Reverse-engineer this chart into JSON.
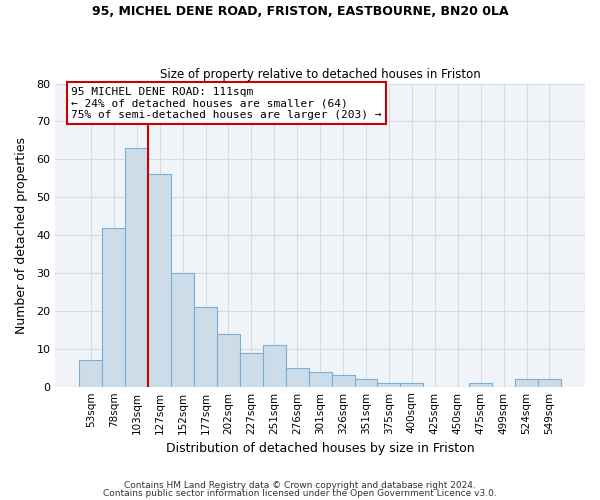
{
  "title": "95, MICHEL DENE ROAD, FRISTON, EASTBOURNE, BN20 0LA",
  "subtitle": "Size of property relative to detached houses in Friston",
  "xlabel": "Distribution of detached houses by size in Friston",
  "ylabel": "Number of detached properties",
  "bar_color": "#ccdce8",
  "bar_edge_color": "#7bafd4",
  "categories": [
    "53sqm",
    "78sqm",
    "103sqm",
    "127sqm",
    "152sqm",
    "177sqm",
    "202sqm",
    "227sqm",
    "251sqm",
    "276sqm",
    "301sqm",
    "326sqm",
    "351sqm",
    "375sqm",
    "400sqm",
    "425sqm",
    "450sqm",
    "475sqm",
    "499sqm",
    "524sqm",
    "549sqm"
  ],
  "values": [
    7,
    42,
    63,
    56,
    30,
    21,
    14,
    9,
    11,
    5,
    4,
    3,
    2,
    1,
    1,
    0,
    0,
    1,
    0,
    2,
    2
  ],
  "ylim": [
    0,
    80
  ],
  "yticks": [
    0,
    10,
    20,
    30,
    40,
    50,
    60,
    70,
    80
  ],
  "property_line_x": 2.5,
  "annotation_title": "95 MICHEL DENE ROAD: 111sqm",
  "annotation_line1": "← 24% of detached houses are smaller (64)",
  "annotation_line2": "75% of semi-detached houses are larger (203) →",
  "annotation_box_color": "#ffffff",
  "annotation_border_color": "#cc0000",
  "property_line_color": "#cc0000",
  "grid_color": "#d4dce8",
  "background_color": "#ffffff",
  "plot_bg_color": "#f0f4f8",
  "footer1": "Contains HM Land Registry data © Crown copyright and database right 2024.",
  "footer2": "Contains public sector information licensed under the Open Government Licence v3.0."
}
